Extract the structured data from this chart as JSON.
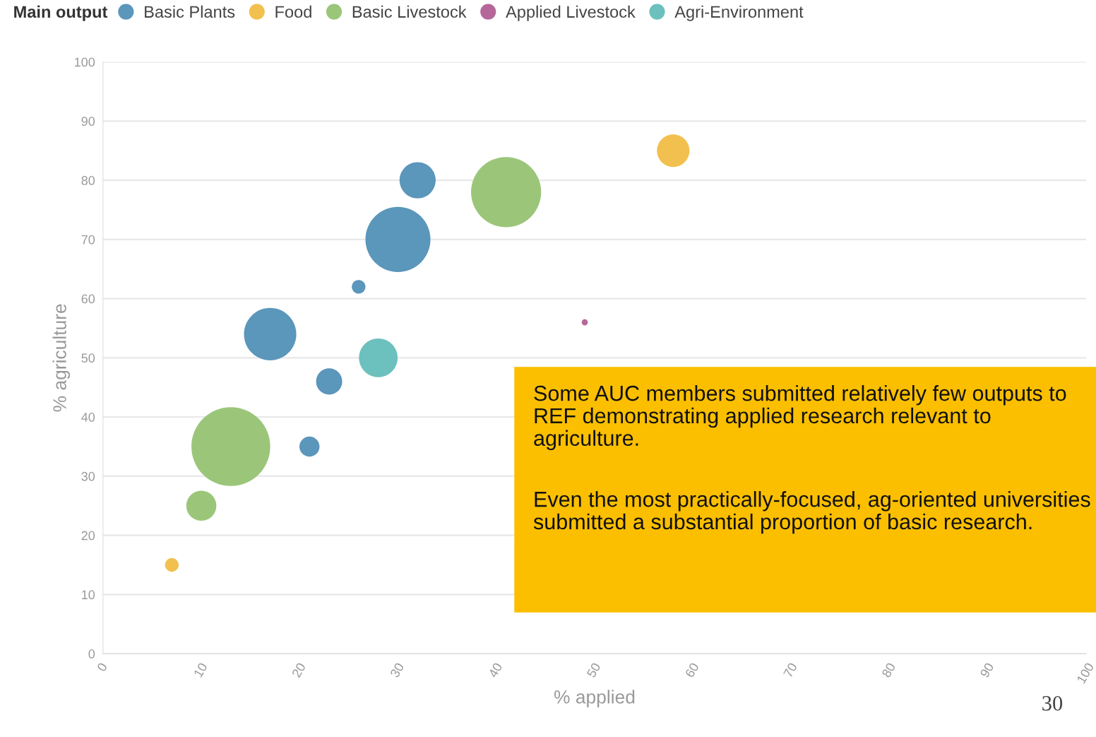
{
  "chart_data": {
    "type": "bubble",
    "xlabel": "% applied",
    "ylabel": "% agriculture",
    "legend_title": "Main output",
    "legend": "top left",
    "grid": "y",
    "xlim": [
      0,
      100
    ],
    "xticks": [
      0,
      10,
      20,
      30,
      40,
      50,
      60,
      70,
      80,
      90,
      100
    ],
    "ylim": [
      0,
      100
    ],
    "yticks": [
      0,
      10,
      20,
      30,
      40,
      50,
      60,
      70,
      80,
      90,
      100
    ],
    "series": [
      {
        "name": "Basic Plants",
        "color": "#5b96bb",
        "x": [
          32,
          30,
          26,
          17,
          23,
          21
        ],
        "values": [
          80,
          70,
          62,
          54,
          46,
          35
        ],
        "sizes": [
          0.21,
          0.68,
          0.03,
          0.44,
          0.11,
          0.065
        ]
      },
      {
        "name": "Food",
        "color": "#f2c04e",
        "x": [
          58,
          7
        ],
        "values": [
          85,
          15
        ],
        "sizes": [
          0.17,
          0.03
        ]
      },
      {
        "name": "Basic Livestock",
        "color": "#9bc67a",
        "x": [
          41,
          13,
          10
        ],
        "values": [
          78,
          35,
          25
        ],
        "sizes": [
          0.79,
          1,
          0.145
        ]
      },
      {
        "name": "Applied Livestock",
        "color": "#b5679a",
        "x": [
          49
        ],
        "values": [
          56
        ],
        "sizes": [
          0.006
        ]
      },
      {
        "name": "Agri-Environment",
        "color": "#6cc0bd",
        "x": [
          28
        ],
        "values": [
          50
        ],
        "sizes": [
          0.24
        ]
      }
    ],
    "annotations": [
      "Some AUC members submitted relatively few outputs to REF demonstrating applied research relevant to agriculture.",
      "Even the most practically-focused, ag-oriented universities submitted a substantial proportion of basic research.",
      "30"
    ]
  }
}
